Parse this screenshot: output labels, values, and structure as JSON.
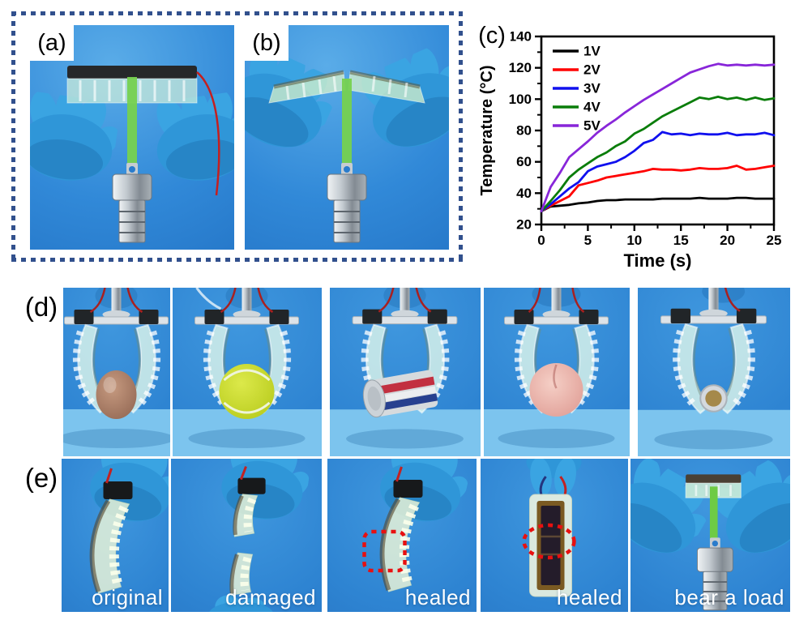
{
  "panel_labels": {
    "a": "(a)",
    "b": "(b)",
    "c": "(c)",
    "d": "(d)",
    "e": "(e)"
  },
  "rows": {
    "d": {
      "objects": [
        "egg",
        "tennis-ball",
        "soda-can",
        "peach",
        "coin"
      ]
    },
    "e": {
      "captions": [
        "original",
        "damaged",
        "healed",
        "healed",
        "bear a load"
      ]
    }
  },
  "colors": {
    "dotted_border": "#31508d",
    "annotation_red": "#e81010",
    "photo_background_blue": "#2e84d2"
  },
  "chart_data": {
    "type": "line",
    "title": "",
    "xlabel": "Time (s)",
    "ylabel": "Temperature (°C)",
    "xlim": [
      0,
      25
    ],
    "ylim": [
      20,
      140
    ],
    "xticks": [
      0,
      5,
      10,
      15,
      20,
      25
    ],
    "yticks": [
      20,
      40,
      60,
      80,
      100,
      120,
      140
    ],
    "grid": false,
    "legend_position": "top-left",
    "x": [
      0,
      1,
      2,
      3,
      4,
      5,
      6,
      7,
      8,
      9,
      10,
      11,
      12,
      13,
      14,
      15,
      16,
      17,
      18,
      19,
      20,
      21,
      22,
      23,
      24,
      25
    ],
    "series": [
      {
        "name": "1V",
        "color": "#000000",
        "values": [
          28.5,
          31.5,
          32,
          32.5,
          33.5,
          34,
          35,
          35.5,
          35.5,
          36,
          36,
          36,
          36,
          36.5,
          36.5,
          36.5,
          36.5,
          37,
          36.5,
          36.5,
          36.5,
          37,
          37,
          36.5,
          36.5,
          36.5
        ]
      },
      {
        "name": "2V",
        "color": "#ff0000",
        "values": [
          28.5,
          32,
          35,
          38,
          45,
          46.5,
          48,
          50,
          51,
          52,
          53,
          54,
          55.5,
          55,
          55,
          54.5,
          55,
          56,
          55.5,
          55.5,
          56,
          57.5,
          55,
          55.5,
          56.5,
          57.5
        ]
      },
      {
        "name": "3V",
        "color": "#1010ee",
        "values": [
          28.5,
          33,
          38,
          43,
          47,
          54,
          57,
          58.5,
          60,
          63,
          67,
          72,
          74,
          79,
          77.5,
          78,
          77,
          78,
          77.5,
          77.5,
          78.5,
          77,
          77.5,
          77.5,
          78.5,
          77
        ]
      },
      {
        "name": "4V",
        "color": "#0a7d0a",
        "values": [
          28.5,
          35,
          42,
          50,
          55,
          59,
          63,
          66,
          70,
          73,
          78,
          81,
          85,
          89,
          92,
          95,
          98,
          101,
          100,
          101.5,
          100,
          101,
          99.5,
          101,
          99.5,
          100.5
        ]
      },
      {
        "name": "5V",
        "color": "#8826d9",
        "values": [
          28.5,
          44,
          53,
          63,
          68,
          73,
          78.5,
          83,
          87,
          91.5,
          95.5,
          99.5,
          103,
          106.5,
          110,
          113.5,
          117,
          119,
          121,
          122.5,
          121.5,
          122,
          121.5,
          122,
          121.5,
          122
        ]
      }
    ]
  }
}
